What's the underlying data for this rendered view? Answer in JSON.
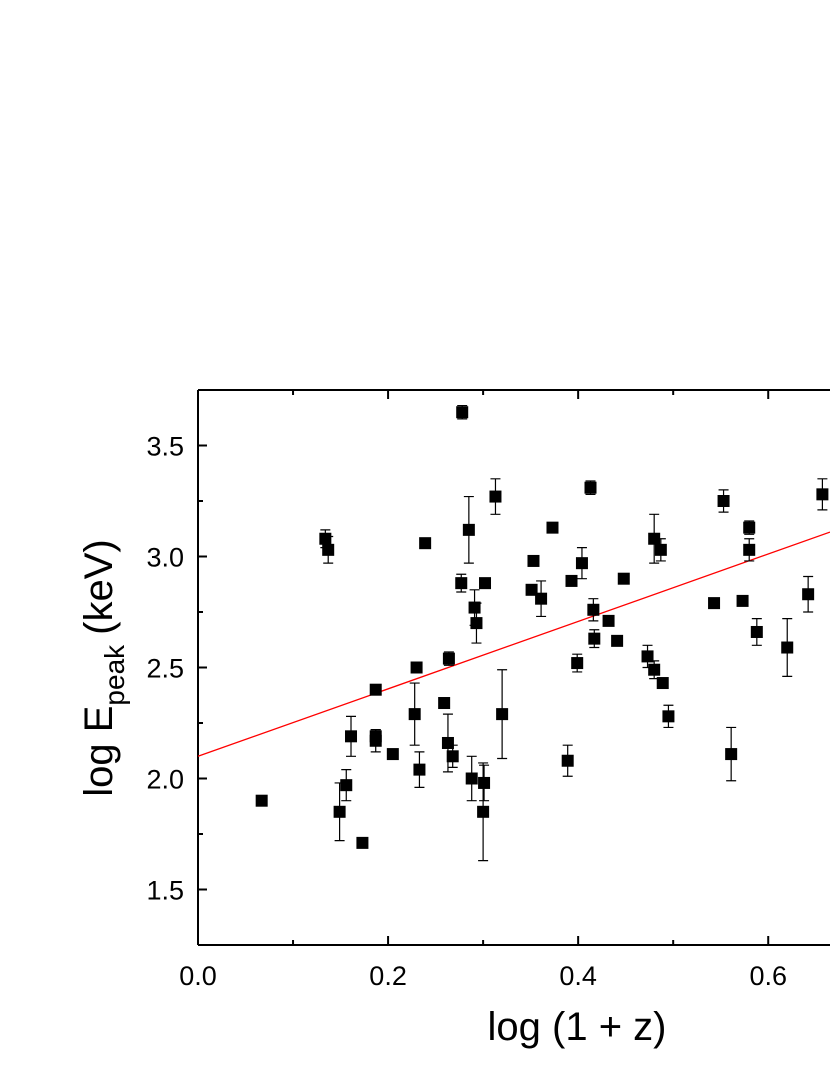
{
  "chart_data": {
    "type": "scatter",
    "x_label": "log (1 + z)",
    "y_label": {
      "main": "log E",
      "sub": "peak",
      "unit": "(keV)"
    },
    "xlim": [
      0,
      0.665
    ],
    "ylim": [
      1.25,
      3.75
    ],
    "xticks": [
      {
        "value": 0,
        "label": "0.0"
      },
      0.2,
      0.4,
      0.6
    ],
    "xminor": [
      0.1,
      0.3,
      0.5
    ],
    "yticks": [
      1.5,
      {
        "value": 2,
        "label": "2.0"
      },
      2.5,
      {
        "value": 3,
        "label": "3.0"
      },
      3.5
    ],
    "yminor": [
      1.25,
      1.75,
      2.25,
      2.75,
      3.25,
      3.75
    ],
    "color": "#000000",
    "x": [
      0.067,
      0.134,
      0.137,
      0.149,
      0.156,
      0.161,
      0.173,
      0.187,
      0.187,
      0.187,
      0.205,
      0.228,
      0.23,
      0.233,
      0.239,
      0.259,
      0.263,
      0.264,
      0.268,
      0.278,
      0.277,
      0.285,
      0.288,
      0.291,
      0.293,
      0.302,
      0.301,
      0.3,
      0.313,
      0.32,
      0.351,
      0.353,
      0.361,
      0.373,
      0.389,
      0.393,
      0.399,
      0.404,
      0.413,
      0.416,
      0.417,
      0.432,
      0.441,
      0.448,
      0.473,
      0.48,
      0.48,
      0.487,
      0.489,
      0.495,
      0.543,
      0.553,
      0.561,
      0.573,
      0.58,
      0.58,
      0.588,
      0.62,
      0.642,
      0.657
    ],
    "values": [
      1.9,
      3.08,
      3.03,
      1.85,
      1.97,
      2.19,
      1.71,
      2.4,
      2.19,
      2.17,
      2.11,
      2.29,
      2.5,
      2.04,
      3.06,
      2.34,
      2.16,
      2.54,
      2.1,
      3.65,
      2.88,
      3.12,
      2.0,
      2.77,
      2.7,
      2.88,
      1.98,
      1.85,
      3.27,
      2.29,
      2.85,
      2.98,
      2.81,
      3.13,
      2.08,
      2.89,
      2.52,
      2.97,
      3.31,
      2.76,
      2.63,
      2.71,
      2.62,
      2.9,
      2.55,
      3.08,
      2.49,
      3.03,
      2.43,
      2.28,
      2.79,
      3.25,
      2.11,
      2.8,
      3.13,
      3.03,
      2.66,
      2.59,
      2.83,
      3.28
    ],
    "errors": [
      null,
      0.04,
      0.06,
      0.13,
      0.07,
      0.09,
      null,
      null,
      0.03,
      0.05,
      null,
      0.14,
      null,
      0.08,
      null,
      null,
      0.13,
      0.03,
      0.05,
      0.03,
      0.04,
      0.15,
      0.1,
      0.08,
      0.09,
      null,
      0.08,
      0.22,
      0.08,
      0.2,
      null,
      null,
      0.08,
      null,
      0.07,
      null,
      0.04,
      0.07,
      0.03,
      0.05,
      0.04,
      null,
      null,
      null,
      0.05,
      0.11,
      0.04,
      0.05,
      null,
      0.05,
      null,
      0.05,
      0.12,
      null,
      0.03,
      0.05,
      0.06,
      0.13,
      0.08,
      0.07
    ],
    "fit_line": {
      "x": [
        0,
        0.665
      ],
      "values": [
        2.1,
        3.11
      ],
      "color": "#ff0000"
    }
  }
}
